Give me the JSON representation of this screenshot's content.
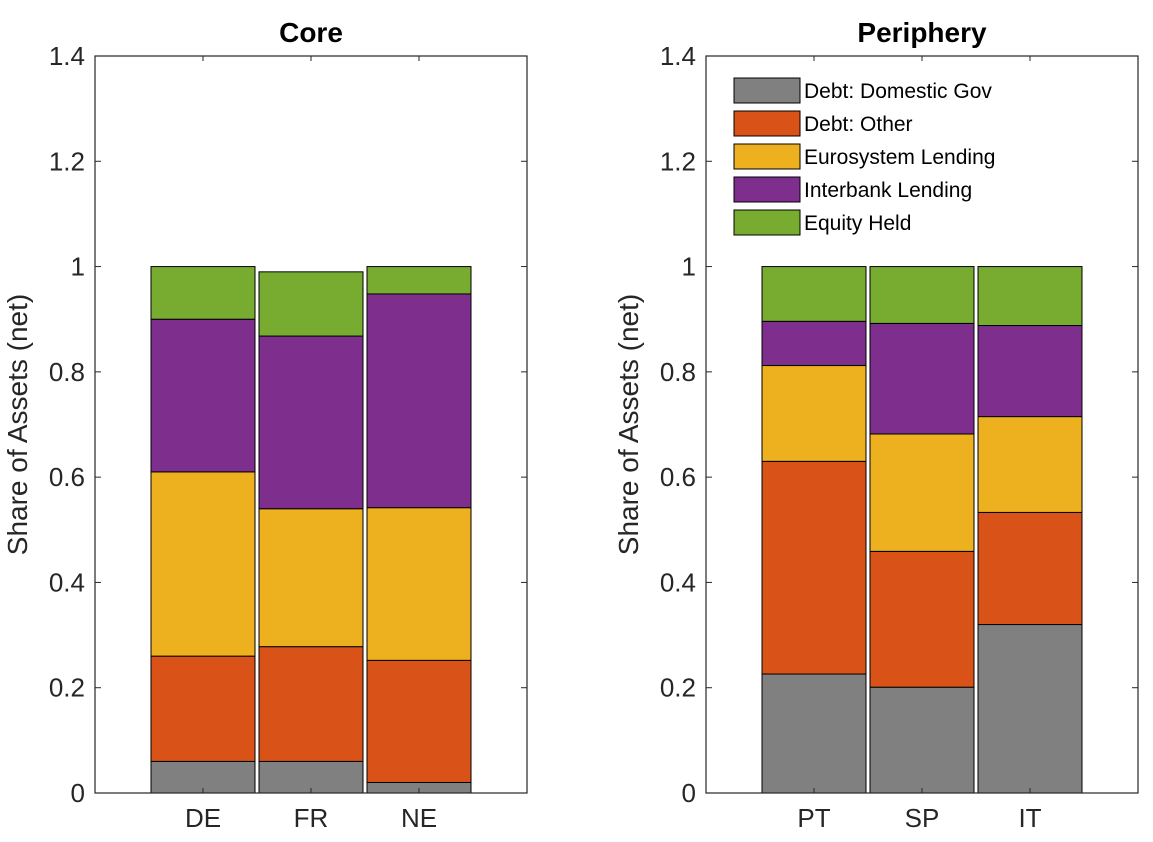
{
  "colors": {
    "Debt: Domestic Gov": "#808080",
    "Debt: Other": "#D95319",
    "Eurosystem Lending": "#EDB120",
    "Interbank Lending": "#7E2F8E",
    "Equity Held": "#77AC30"
  },
  "chart_data": [
    {
      "type": "bar",
      "stacked": true,
      "title": "Core",
      "xlabel": "",
      "ylabel": "Share of Assets (net)",
      "ylim": [
        0,
        1.4
      ],
      "yticks": [
        0,
        0.2,
        0.4,
        0.6,
        0.8,
        1,
        1.2,
        1.4
      ],
      "ytick_labels": [
        "0",
        "0.2",
        "0.4",
        "0.6",
        "0.8",
        "1",
        "1.2",
        "1.4"
      ],
      "grid": false,
      "legend": null,
      "categories": [
        "DE",
        "FR",
        "NE"
      ],
      "series": [
        {
          "name": "Debt: Domestic Gov",
          "values": [
            0.06,
            0.06,
            0.02
          ]
        },
        {
          "name": "Debt: Other",
          "values": [
            0.2,
            0.218,
            0.232
          ]
        },
        {
          "name": "Eurosystem Lending",
          "values": [
            0.35,
            0.262,
            0.29
          ]
        },
        {
          "name": "Interbank Lending",
          "values": [
            0.29,
            0.328,
            0.406
          ]
        },
        {
          "name": "Equity Held",
          "values": [
            0.1,
            0.122,
            0.052
          ]
        }
      ]
    },
    {
      "type": "bar",
      "stacked": true,
      "title": "Periphery",
      "xlabel": "",
      "ylabel": "Share of Assets (net)",
      "ylim": [
        0,
        1.4
      ],
      "yticks": [
        0,
        0.2,
        0.4,
        0.6,
        0.8,
        1,
        1.2,
        1.4
      ],
      "ytick_labels": [
        "0",
        "0.2",
        "0.4",
        "0.6",
        "0.8",
        "1",
        "1.2",
        "1.4"
      ],
      "grid": false,
      "legend": "top-left",
      "categories": [
        "PT",
        "SP",
        "IT"
      ],
      "series": [
        {
          "name": "Debt: Domestic Gov",
          "values": [
            0.226,
            0.201,
            0.32
          ]
        },
        {
          "name": "Debt: Other",
          "values": [
            0.404,
            0.258,
            0.213
          ]
        },
        {
          "name": "Eurosystem Lending",
          "values": [
            0.182,
            0.223,
            0.182
          ]
        },
        {
          "name": "Interbank Lending",
          "values": [
            0.084,
            0.21,
            0.173
          ]
        },
        {
          "name": "Equity Held",
          "values": [
            0.104,
            0.108,
            0.112
          ]
        }
      ]
    }
  ]
}
